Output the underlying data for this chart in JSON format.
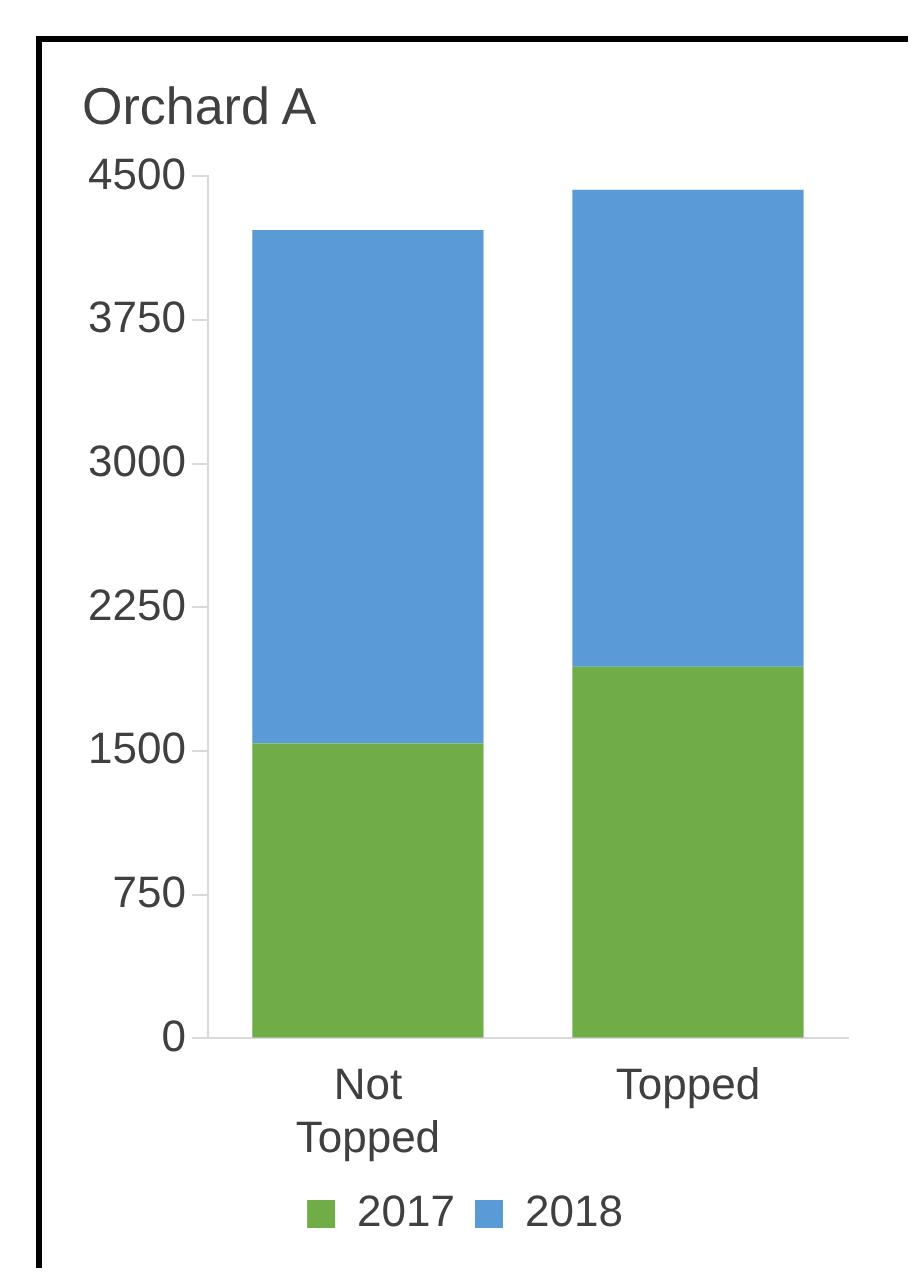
{
  "chart_data": {
    "type": "bar",
    "title": "Orchard A",
    "stacked": true,
    "categories": [
      "Not Topped",
      "Topped"
    ],
    "series": [
      {
        "name": "2017",
        "color": "#70ad47",
        "values": [
          1540,
          1940
        ]
      },
      {
        "name": "2018",
        "color": "#5b9bd5",
        "values": [
          2680,
          2490
        ]
      }
    ],
    "ylim": [
      0,
      4500
    ],
    "yticks": [
      0,
      750,
      1500,
      2250,
      3000,
      3750,
      4500
    ],
    "grid": false,
    "legend": "bottom"
  }
}
